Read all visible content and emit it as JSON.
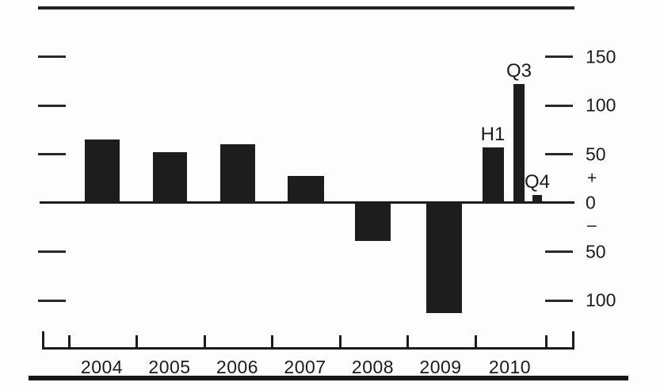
{
  "colors": {
    "ink": "#1b1b1b",
    "bar": "#1d1d1d",
    "background": "#fdfdfd"
  },
  "chart_data": {
    "type": "bar",
    "title": "",
    "xlabel": "",
    "ylabel": "",
    "grid": false,
    "legend": false,
    "categories": [
      "2004",
      "2005",
      "2006",
      "2007",
      "2008",
      "2009",
      "2010"
    ],
    "bars": [
      {
        "category": "2004",
        "sub_label": "",
        "value": 65
      },
      {
        "category": "2005",
        "sub_label": "",
        "value": 52
      },
      {
        "category": "2006",
        "sub_label": "",
        "value": 60
      },
      {
        "category": "2007",
        "sub_label": "",
        "value": 28
      },
      {
        "category": "2008",
        "sub_label": "",
        "value": -38
      },
      {
        "category": "2009",
        "sub_label": "",
        "value": -112
      },
      {
        "category": "2010",
        "sub_label": "H1",
        "value": 57
      },
      {
        "category": "2010",
        "sub_label": "Q3",
        "value": 122
      },
      {
        "category": "2010",
        "sub_label": "Q4",
        "value": 8
      }
    ],
    "y_axis": {
      "side_labeled": "right",
      "tick_values": [
        150,
        100,
        50,
        0,
        -50,
        -100
      ],
      "tick_labels": [
        "150",
        "100",
        "50",
        "0",
        "50",
        "100"
      ],
      "plus_label": "+",
      "minus_label": "–",
      "unit_step": 50,
      "ylim": [
        -130,
        175
      ],
      "left_ticks_unlabeled": true
    }
  }
}
